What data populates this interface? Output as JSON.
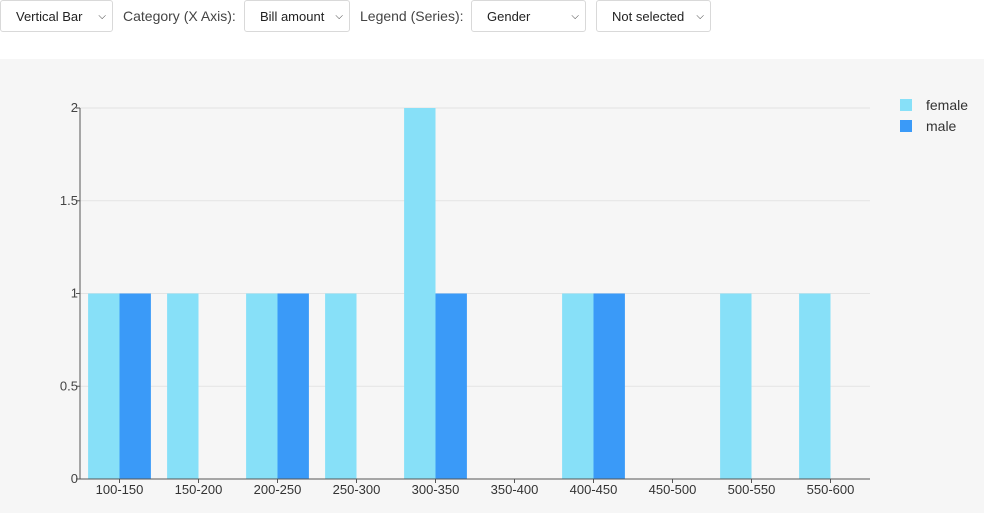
{
  "toolbar": {
    "chart_type": "Vertical Bar",
    "category_label": "Category (X Axis):",
    "category_value": "Bill amount",
    "legend_label": "Legend (Series):",
    "legend_value": "Gender",
    "extra_value": "Not selected"
  },
  "colors": {
    "female": "#87e0f8",
    "male": "#3a9af8",
    "chart_background": "#f6f6f6"
  },
  "chart_data": {
    "type": "bar",
    "categories": [
      "100-150",
      "150-200",
      "200-250",
      "250-300",
      "300-350",
      "350-400",
      "400-450",
      "450-500",
      "500-550",
      "550-600"
    ],
    "series": [
      {
        "name": "female",
        "values": [
          1,
          1,
          1,
          1,
          2,
          0,
          1,
          0,
          1,
          1
        ]
      },
      {
        "name": "male",
        "values": [
          1,
          0,
          1,
          0,
          1,
          0,
          1,
          0,
          0,
          0
        ]
      }
    ],
    "yticks": [
      "0",
      "0.5",
      "1",
      "1.5",
      "2"
    ],
    "ylim": [
      0,
      2
    ],
    "grid": true,
    "legend_position": "top-right"
  }
}
